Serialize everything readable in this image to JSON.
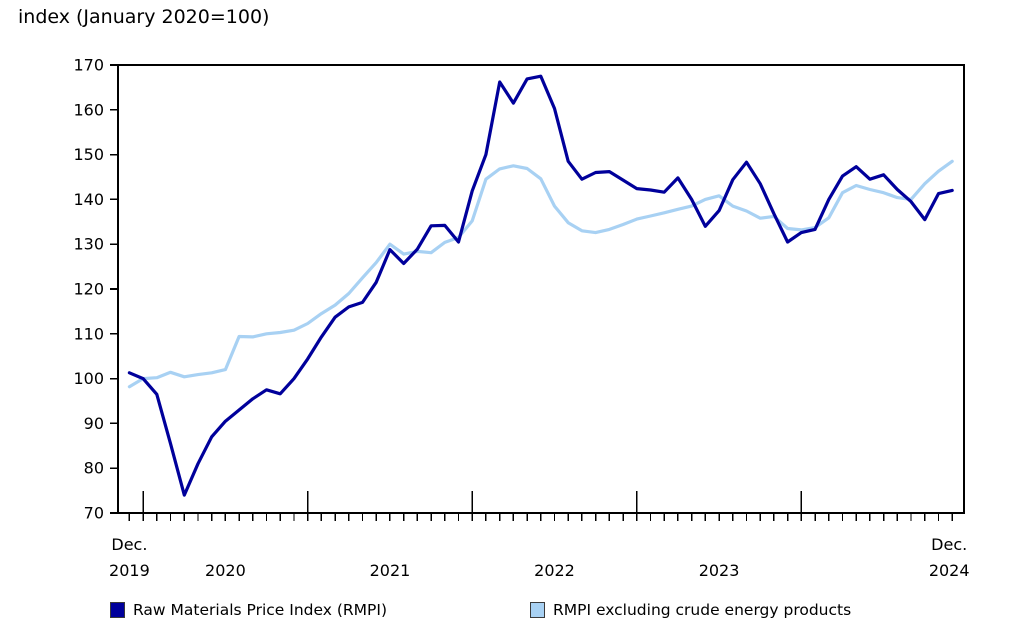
{
  "title": "index (January 2020=100)",
  "colors": {
    "rmpi_line": "#00009b",
    "rmpi_ex_line": "#a8d1f3",
    "axis": "#000000",
    "text": "#000000"
  },
  "x_axis": {
    "start_label_line1": "Dec.",
    "start_label_line2": "2019",
    "end_label_line1": "Dec.",
    "end_label_line2": "2024",
    "year_labels": [
      "2020",
      "2021",
      "2022",
      "2023"
    ]
  },
  "chart_data": {
    "type": "line",
    "title": "index (January 2020=100)",
    "x_unit": "month",
    "x_range": "December 2019 to December 2024, monthly (61 points)",
    "ylim": [
      70,
      170
    ],
    "y_ticks": [
      70,
      80,
      90,
      100,
      110,
      120,
      130,
      140,
      150,
      160,
      170
    ],
    "grid": false,
    "legend_position": "bottom",
    "series": [
      {
        "name": "Raw Materials Price Index (RMPI)",
        "color": "#00009b",
        "values": [
          101.3,
          100.0,
          96.5,
          85.5,
          74.0,
          81.0,
          87.0,
          90.5,
          93.0,
          95.5,
          97.5,
          96.6,
          100.0,
          104.4,
          109.3,
          113.7,
          116.0,
          117.0,
          121.5,
          128.8,
          125.7,
          128.9,
          134.1,
          134.2,
          130.5,
          141.9,
          150.0,
          166.2,
          161.5,
          166.9,
          167.5,
          160.3,
          148.5,
          144.5,
          146.0,
          146.2,
          144.3,
          142.4,
          142.1,
          141.6,
          144.8,
          140.0,
          134.0,
          137.5,
          144.4,
          148.3,
          143.5,
          136.8,
          130.5,
          132.6,
          133.3,
          140.0,
          145.2,
          147.3,
          144.5,
          145.5,
          142.2,
          139.5,
          135.5,
          141.3,
          142.0
        ]
      },
      {
        "name": "RMPI excluding crude energy products",
        "color": "#a8d1f3",
        "values": [
          98.2,
          100.0,
          100.2,
          101.4,
          100.4,
          100.9,
          101.3,
          102.0,
          109.4,
          109.3,
          110.0,
          110.3,
          110.8,
          112.3,
          114.5,
          116.4,
          119.0,
          122.5,
          125.9,
          130.0,
          127.8,
          128.4,
          128.1,
          130.4,
          131.5,
          135.2,
          144.5,
          146.8,
          147.5,
          146.9,
          144.6,
          138.5,
          134.8,
          133.0,
          132.6,
          133.3,
          134.4,
          135.6,
          136.3,
          137.0,
          137.8,
          138.5,
          140.0,
          140.8,
          138.5,
          137.4,
          135.8,
          136.2,
          133.5,
          133.2,
          133.7,
          135.9,
          141.5,
          143.1,
          142.2,
          141.5,
          140.4,
          140.0,
          143.5,
          146.3,
          148.5
        ]
      }
    ]
  }
}
